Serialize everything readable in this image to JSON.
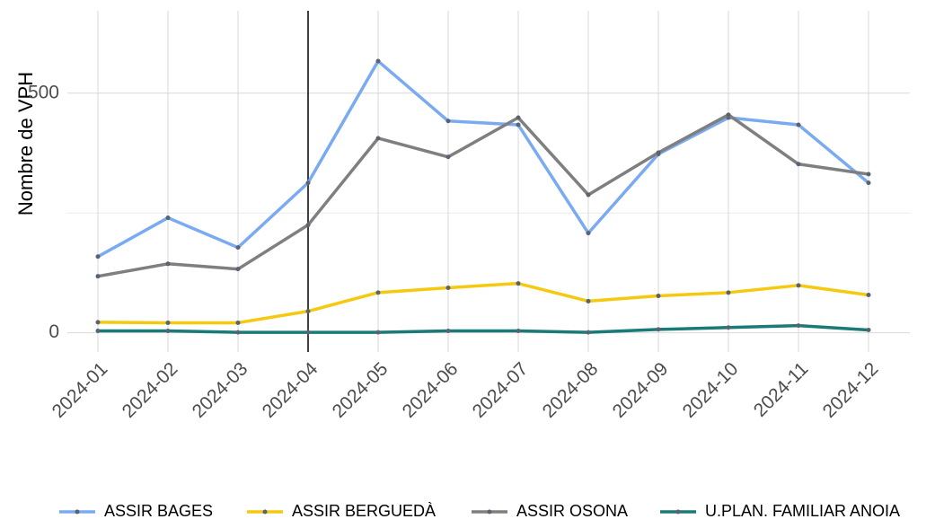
{
  "chart_data": {
    "type": "line",
    "y_label": "Nombre de VPH",
    "categories": [
      "2024-01",
      "2024-02",
      "2024-03",
      "2024-04",
      "2024-05",
      "2024-06",
      "2024-07",
      "2024-08",
      "2024-09",
      "2024-10",
      "2024-11",
      "2024-12"
    ],
    "series": [
      {
        "name": "ASSIR BAGES",
        "color": "#7aabf2",
        "values": [
          159,
          240,
          178,
          313,
          567,
          442,
          434,
          208,
          373,
          449,
          434,
          313
        ]
      },
      {
        "name": "ASSIR BERGUEDÀ",
        "color": "#f5c90f",
        "values": [
          22,
          21,
          21,
          45,
          84,
          94,
          103,
          66,
          77,
          84,
          99,
          79
        ]
      },
      {
        "name": "ASSIR OSONA",
        "color": "#7f7f7f",
        "values": [
          118,
          144,
          133,
          225,
          406,
          367,
          449,
          288,
          376,
          455,
          352,
          331
        ]
      },
      {
        "name": "U.PLAN. FAMILIAR ANOIA",
        "color": "#1a7a78",
        "values": [
          4,
          4,
          1,
          1,
          1,
          4,
          4,
          1,
          7,
          11,
          15,
          6
        ]
      }
    ],
    "vline": "2024-04",
    "ylim": [
      -40,
      672
    ],
    "yticks": [
      0,
      500
    ],
    "grid": true,
    "legend": "bottom"
  }
}
